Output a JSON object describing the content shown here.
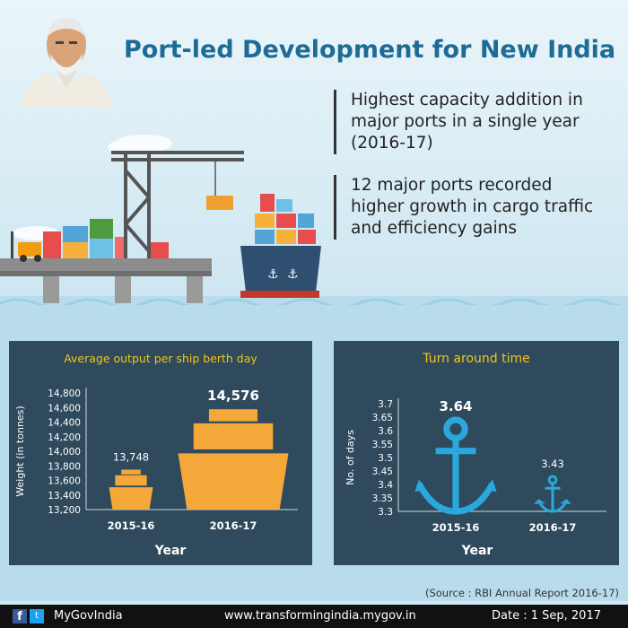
{
  "header": {
    "title": "Port-led Development for New India"
  },
  "highlights": [
    {
      "lines": [
        "Highest capacity addition in",
        "major ports in a single year",
        "(2016-17)"
      ]
    },
    {
      "lines": [
        "12 major ports recorded",
        "higher growth in cargo traffic",
        "and efficiency gains"
      ]
    }
  ],
  "chart_data": [
    {
      "type": "bar",
      "title": "Average output per ship berth day",
      "xlabel": "Year",
      "ylabel": "Weight (in tonnes)",
      "categories": [
        "2015-16",
        "2016-17"
      ],
      "values": [
        13748,
        14576
      ],
      "value_labels": [
        "13,748",
        "14,576"
      ],
      "ylim": [
        13200,
        14800
      ],
      "yticks": [
        13200,
        13400,
        13600,
        13800,
        14000,
        14200,
        14400,
        14600,
        14800
      ],
      "ytick_labels": [
        "13,200",
        "13,400",
        "13,600",
        "13,800",
        "14,000",
        "14,200",
        "14,400",
        "14,600",
        "14,800"
      ],
      "grid": false,
      "legend": "none",
      "marker_icon": "ship-icon",
      "color": "#f5a83a"
    },
    {
      "type": "bar",
      "title": "Turn around time",
      "xlabel": "Year",
      "ylabel": "No. of days",
      "categories": [
        "2015-16",
        "2016-17"
      ],
      "values": [
        3.64,
        3.43
      ],
      "value_labels": [
        "3.64",
        "3.43"
      ],
      "ylim": [
        3.3,
        3.7
      ],
      "yticks": [
        3.3,
        3.35,
        3.4,
        3.45,
        3.5,
        3.55,
        3.6,
        3.65,
        3.7
      ],
      "ytick_labels": [
        "3.3",
        "3.35",
        "3.4",
        "3.45",
        "3.5",
        "3.55",
        "3.6",
        "3.65",
        "3.7"
      ],
      "grid": false,
      "legend": "none",
      "marker_icon": "anchor-icon",
      "color": "#2aa7dc"
    }
  ],
  "source": "(Source : RBI Annual Report 2016-17)",
  "footer": {
    "facebook_glyph": "f",
    "twitter_glyph": "t",
    "handle": "MyGovIndia",
    "site": "www.transformingindia.mygov.in",
    "date": "Date : 1 Sep, 2017"
  },
  "colors": {
    "title": "#1e6b96",
    "panel": "#2e4a5c",
    "accent_yellow": "#f5c518",
    "ship": "#f5a83a",
    "anchor": "#2aa7dc"
  }
}
